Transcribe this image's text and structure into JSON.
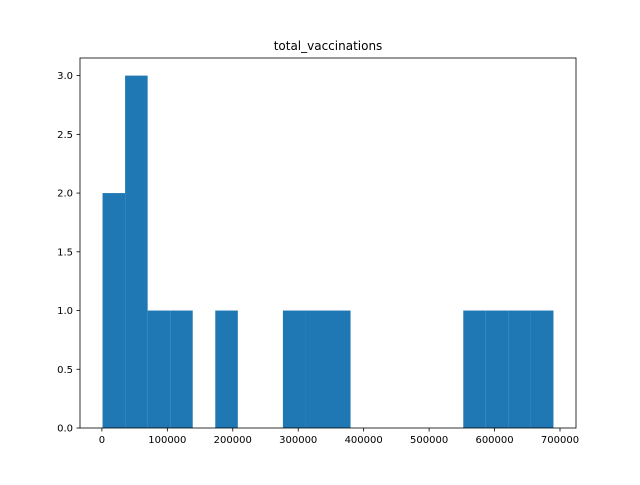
{
  "chart_data": {
    "type": "bar",
    "title": "total_vaccinations",
    "xlabel": "",
    "ylabel": "",
    "bin_edges": [
      1000,
      35450,
      69900,
      104350,
      138800,
      173250,
      207700,
      242150,
      276600,
      311050,
      345500,
      379950,
      414400,
      448850,
      483300,
      517750,
      552200,
      586650,
      621100,
      655550,
      690000
    ],
    "counts": [
      2,
      3,
      1,
      1,
      0,
      1,
      0,
      0,
      1,
      1,
      1,
      0,
      0,
      0,
      0,
      0,
      1,
      1,
      1,
      1
    ],
    "xlim": [
      -33450,
      724450
    ],
    "ylim": [
      0,
      3.15
    ],
    "x_ticks": [
      {
        "value": 0,
        "label": "0"
      },
      {
        "value": 100000,
        "label": "100000"
      },
      {
        "value": 200000,
        "label": "200000"
      },
      {
        "value": 300000,
        "label": "300000"
      },
      {
        "value": 400000,
        "label": "400000"
      },
      {
        "value": 500000,
        "label": "500000"
      },
      {
        "value": 600000,
        "label": "600000"
      },
      {
        "value": 700000,
        "label": "700000"
      }
    ],
    "y_ticks": [
      {
        "value": 0,
        "label": "0.0"
      },
      {
        "value": 0.5,
        "label": "0.5"
      },
      {
        "value": 1.0,
        "label": "1.0"
      },
      {
        "value": 1.5,
        "label": "1.5"
      },
      {
        "value": 2.0,
        "label": "2.0"
      },
      {
        "value": 2.5,
        "label": "2.5"
      },
      {
        "value": 3.0,
        "label": "3.0"
      }
    ],
    "bar_color": "#1f77b4",
    "grid": false,
    "legend": "none"
  }
}
